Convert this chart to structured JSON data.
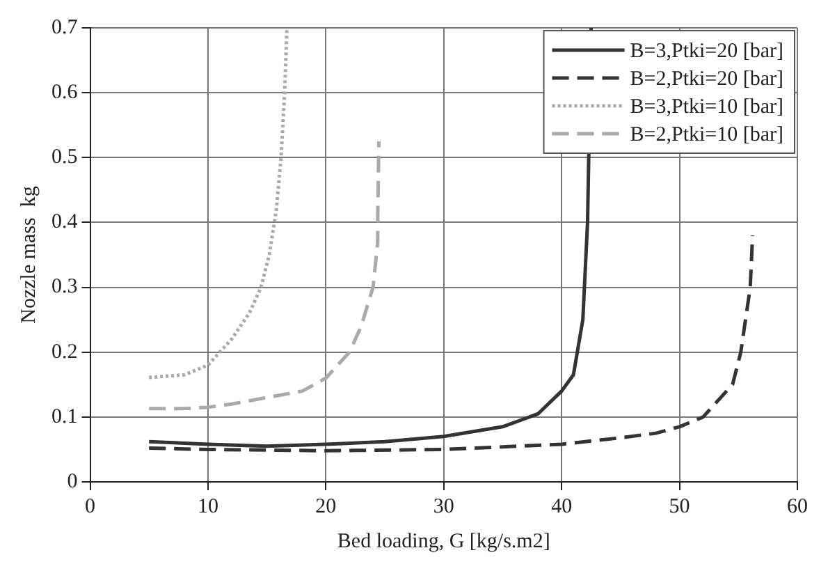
{
  "chart_data": {
    "type": "line",
    "xlabel": "Bed loading, G [kg/s.m2]",
    "ylabel": "Nozzle mass  kg",
    "xlim": [
      0,
      60
    ],
    "xticks": [
      0,
      10,
      20,
      30,
      40,
      50,
      60
    ],
    "ylim": [
      0,
      0.7
    ],
    "yticks": [
      0,
      0.1,
      0.2,
      0.3,
      0.4,
      0.5,
      0.6,
      0.7
    ],
    "grid": true,
    "legend": "top right",
    "marker": "none",
    "series": [
      {
        "name": "B=3,Ptki=20 [bar]",
        "color": "#333333",
        "line_style": "solid",
        "x": [
          5,
          10,
          15,
          20,
          25,
          30,
          35,
          38,
          40,
          41,
          41.8,
          42.2,
          42.5
        ],
        "values": [
          0.062,
          0.058,
          0.055,
          0.058,
          0.062,
          0.07,
          0.085,
          0.105,
          0.14,
          0.165,
          0.25,
          0.4,
          0.7
        ]
      },
      {
        "name": "B=2,Ptki=20 [bar]",
        "color": "#333333",
        "line_style": "dashed",
        "x": [
          5,
          10,
          20,
          30,
          40,
          45,
          48,
          50,
          52,
          53,
          54.5,
          55.2,
          55.6,
          56,
          56.2
        ],
        "values": [
          0.052,
          0.05,
          0.048,
          0.05,
          0.058,
          0.068,
          0.075,
          0.085,
          0.1,
          0.12,
          0.15,
          0.2,
          0.25,
          0.3,
          0.38
        ]
      },
      {
        "name": "B=3,Ptki=10 [bar]",
        "color": "#aaaaaa",
        "line_style": "dotted",
        "x": [
          5,
          8,
          10,
          12,
          13.5,
          14.5,
          15.2,
          15.8,
          16.2,
          16.5,
          16.7
        ],
        "values": [
          0.161,
          0.165,
          0.18,
          0.22,
          0.26,
          0.3,
          0.35,
          0.42,
          0.5,
          0.6,
          0.7
        ]
      },
      {
        "name": "B=2,Ptki=10 [bar]",
        "color": "#aaaaaa",
        "line_style": "dashed",
        "x": [
          5,
          8,
          10,
          12,
          15,
          18,
          20,
          22,
          23,
          24,
          24.4,
          24.4,
          24.5
        ],
        "values": [
          0.113,
          0.113,
          0.115,
          0.12,
          0.13,
          0.14,
          0.16,
          0.2,
          0.24,
          0.3,
          0.37,
          0.41,
          0.525
        ]
      }
    ]
  }
}
